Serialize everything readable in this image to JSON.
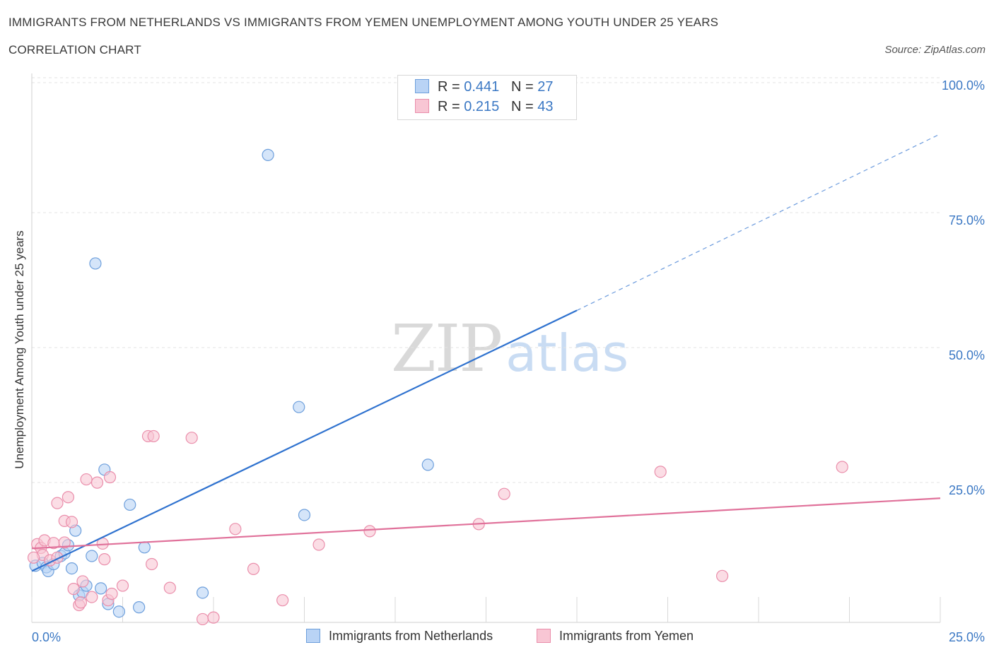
{
  "title": "IMMIGRANTS FROM NETHERLANDS VS IMMIGRANTS FROM YEMEN UNEMPLOYMENT AMONG YOUTH UNDER 25 YEARS",
  "subtitle": "CORRELATION CHART",
  "source": "Source: ZipAtlas.com",
  "watermark": {
    "zip": "ZIP",
    "atlas": "atlas"
  },
  "colors": {
    "blue_fill": "#b9d3f5",
    "blue_stroke": "#6d9fdc",
    "blue_line": "#2f72cf",
    "pink_fill": "#f8c6d4",
    "pink_stroke": "#ea8eab",
    "pink_line": "#e0719a",
    "tick_text": "#3b78c4",
    "grid": "#e3e3e3"
  },
  "legend": {
    "rows": [
      {
        "r_label": "R =",
        "r_value": "0.441",
        "n_label": "N =",
        "n_value": "27"
      },
      {
        "r_label": "R =",
        "r_value": "0.215",
        "n_label": "N =",
        "n_value": "43"
      }
    ]
  },
  "chart_data": {
    "type": "scatter",
    "title": "IMMIGRANTS FROM NETHERLANDS VS IMMIGRANTS FROM YEMEN UNEMPLOYMENT AMONG YOUTH UNDER 25 YEARS",
    "xlabel": "",
    "ylabel": "Unemployment Among Youth under 25 years",
    "xlim": [
      0,
      25
    ],
    "ylim": [
      0,
      100
    ],
    "x_tick_labels": [
      "0.0%",
      "25.0%"
    ],
    "y_ticks": [
      25,
      50,
      75,
      100
    ],
    "y_tick_labels": [
      "25.0%",
      "50.0%",
      "75.0%",
      "100.0%"
    ],
    "legend_position": "top-center",
    "series": [
      {
        "name": "Immigrants from Netherlands",
        "color": "blue",
        "points": [
          [
            0.1,
            10.5
          ],
          [
            0.3,
            11.0
          ],
          [
            0.4,
            10.2
          ],
          [
            0.45,
            9.5
          ],
          [
            0.6,
            10.8
          ],
          [
            0.8,
            12.3
          ],
          [
            0.9,
            12.8
          ],
          [
            1.0,
            14.3
          ],
          [
            1.1,
            10.0
          ],
          [
            1.2,
            17.0
          ],
          [
            1.3,
            5.0
          ],
          [
            1.4,
            5.6
          ],
          [
            1.5,
            6.8
          ],
          [
            1.65,
            12.3
          ],
          [
            1.9,
            6.3
          ],
          [
            2.0,
            28.3
          ],
          [
            2.1,
            3.4
          ],
          [
            2.4,
            2.0
          ],
          [
            2.7,
            21.8
          ],
          [
            2.95,
            2.8
          ],
          [
            3.1,
            13.9
          ],
          [
            4.7,
            5.5
          ],
          [
            1.75,
            66.5
          ],
          [
            6.5,
            86.6
          ],
          [
            7.35,
            39.9
          ],
          [
            7.5,
            19.9
          ],
          [
            10.9,
            29.2
          ]
        ],
        "trend": {
          "x_start": 0,
          "y_start": 9.5,
          "x_solid_end": 15.0,
          "y_solid_end": 57.8,
          "x_end": 25,
          "y_end": 90.5
        }
      },
      {
        "name": "Immigrants from Yemen",
        "color": "pink",
        "points": [
          [
            0.15,
            14.5
          ],
          [
            0.25,
            13.8
          ],
          [
            0.3,
            12.5
          ],
          [
            0.35,
            15.2
          ],
          [
            0.5,
            11.5
          ],
          [
            0.6,
            14.7
          ],
          [
            0.7,
            12.0
          ],
          [
            0.7,
            22.1
          ],
          [
            0.9,
            14.8
          ],
          [
            0.9,
            18.8
          ],
          [
            1.0,
            23.2
          ],
          [
            1.1,
            18.6
          ],
          [
            1.15,
            6.2
          ],
          [
            1.3,
            3.2
          ],
          [
            1.35,
            3.7
          ],
          [
            1.4,
            7.6
          ],
          [
            1.5,
            26.5
          ],
          [
            1.65,
            4.7
          ],
          [
            1.8,
            25.9
          ],
          [
            1.95,
            14.6
          ],
          [
            2.0,
            11.7
          ],
          [
            2.1,
            4.1
          ],
          [
            2.15,
            26.9
          ],
          [
            2.2,
            5.3
          ],
          [
            2.5,
            6.8
          ],
          [
            3.2,
            34.5
          ],
          [
            3.35,
            34.5
          ],
          [
            3.3,
            10.8
          ],
          [
            3.8,
            6.4
          ],
          [
            4.4,
            34.2
          ],
          [
            4.7,
            0.6
          ],
          [
            5.0,
            0.9
          ],
          [
            5.6,
            17.3
          ],
          [
            6.1,
            9.9
          ],
          [
            6.9,
            4.1
          ],
          [
            7.9,
            14.4
          ],
          [
            9.3,
            16.9
          ],
          [
            12.3,
            18.2
          ],
          [
            13.0,
            23.8
          ],
          [
            17.3,
            27.9
          ],
          [
            19.0,
            8.6
          ],
          [
            22.3,
            28.8
          ],
          [
            0.05,
            12.0
          ]
        ],
        "trend": {
          "x_start": 0,
          "y_start": 13.7,
          "x_end": 25,
          "y_end": 23.0
        }
      }
    ]
  },
  "bottom_legend": {
    "series_1": "Immigrants from Netherlands",
    "series_2": "Immigrants from Yemen"
  }
}
